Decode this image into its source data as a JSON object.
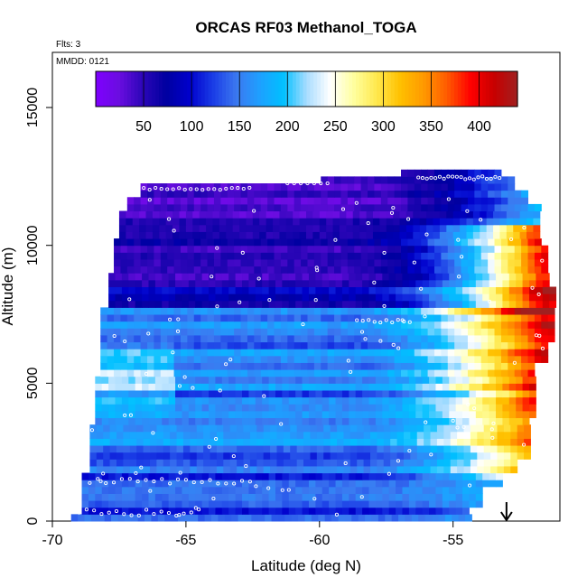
{
  "header": {
    "flights_label": "Flts: 3",
    "date_label": "MMDD: 0121"
  },
  "colors": {
    "palette": [
      "#7F00FF",
      "#6A0DE0",
      "#2C06B8",
      "#0000A0",
      "#0000CC",
      "#1A3CE6",
      "#3C78F0",
      "#1EA0FF",
      "#00C0FF",
      "#A8DCFF",
      "#FFFFFF",
      "#FFFFA0",
      "#FFE84D",
      "#FFC000",
      "#FF9900",
      "#FF5A00",
      "#FF0000",
      "#C80000",
      "#A02020"
    ],
    "point_marker": "#ffffff",
    "arrow": "#000000"
  },
  "chart_data": {
    "type": "heatmap",
    "title": "ORCAS RF03 Methanol_TOGA",
    "xlabel": "Latitude (deg N)",
    "ylabel": "Altitude (m)",
    "xlim": [
      -70,
      -51
    ],
    "ylim": [
      0,
      17000
    ],
    "x_ticks": [
      -70,
      -65,
      -60,
      -55
    ],
    "x_tick_labels": [
      "-70",
      "-65",
      "-60",
      "-55"
    ],
    "y_ticks": [
      0,
      5000,
      10000,
      15000
    ],
    "y_tick_labels": [
      "0",
      "5000",
      "10000",
      "15000"
    ],
    "colorbar": {
      "range": [
        0,
        440
      ],
      "ticks": [
        50,
        100,
        150,
        200,
        250,
        300,
        350,
        400
      ],
      "tick_labels": [
        "50",
        "100",
        "150",
        "200",
        "250",
        "300",
        "350",
        "400"
      ],
      "placement": "top"
    },
    "arrow_latitude": -53,
    "grid": false
  }
}
